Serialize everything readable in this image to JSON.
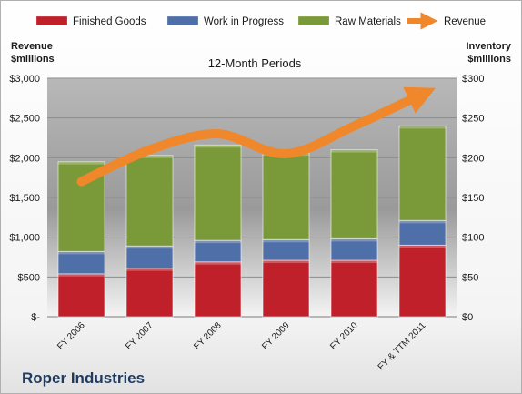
{
  "chart_data": {
    "type": "bar",
    "subtitle": "12-Month Periods",
    "company": "Roper Industries",
    "left_axis_title_line1": "Revenue",
    "left_axis_title_line2": "$millions",
    "right_axis_title_line1": "Inventory",
    "right_axis_title_line2": "$millions",
    "categories": [
      "FY 2006",
      "FY 2007",
      "FY 2008",
      "FY 2009",
      "FY 2010",
      "FY & TTM 2011"
    ],
    "left_ticks": [
      "$-",
      "$500",
      "$1,000",
      "$1,500",
      "$2,000",
      "$2,500",
      "$3,000"
    ],
    "right_ticks": [
      "$0",
      "$50",
      "$100",
      "$150",
      "$200",
      "$250",
      "$300"
    ],
    "ylim_left": [
      0,
      3000
    ],
    "ylim_right": [
      0,
      300
    ],
    "legend_position": "top",
    "grid": true,
    "series": [
      {
        "name": "Finished Goods",
        "axis": "right",
        "color": "#c0202a",
        "values": [
          54,
          61,
          69,
          71,
          71,
          90
        ]
      },
      {
        "name": "Work in Progress",
        "axis": "right",
        "color": "#4f6fa8",
        "values": [
          28,
          28,
          27,
          26,
          27,
          31
        ]
      },
      {
        "name": "Raw Materials",
        "axis": "right",
        "color": "#7a9a3a",
        "values": [
          113,
          114,
          120,
          109,
          112,
          119
        ]
      },
      {
        "name": "Revenue",
        "axis": "left",
        "type": "line",
        "color": "#f0872a",
        "values": [
          1700,
          2100,
          2300,
          2050,
          2400,
          2800
        ]
      }
    ]
  }
}
